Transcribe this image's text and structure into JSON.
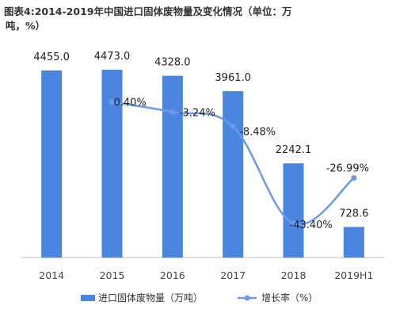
{
  "title_line1": "图表4:2014-2019年中国进口固体废物量及变化情况（单位：万",
  "title_line2": "吨，%）",
  "chart_data": {
    "type": "bar",
    "categories": [
      "2014",
      "2015",
      "2016",
      "2017",
      "2018",
      "2019H1"
    ],
    "series": [
      {
        "name": "进口固体废物量（万吨）",
        "type": "bar",
        "color": "#4a86e0",
        "values": [
          4455.0,
          4473.0,
          4328.0,
          3961.0,
          2242.1,
          728.6
        ],
        "labels": [
          "4455.0",
          "4473.0",
          "4328.0",
          "3961.0",
          "2242.1",
          "728.6"
        ]
      },
      {
        "name": "增长率（%）",
        "type": "line",
        "color": "#6b9be6",
        "x": [
          "2015",
          "2016",
          "2017",
          "2018",
          "2019H1"
        ],
        "values": [
          0.4,
          -3.24,
          -8.48,
          -43.4,
          -26.99
        ],
        "labels": [
          "0.40%",
          "-3.24%",
          "-8.48%",
          "-43.40%",
          "-26.99%"
        ]
      }
    ],
    "ylim_bar": [
      0,
      5000
    ],
    "ylim_line": [
      -50,
      10
    ],
    "legend_position": "bottom",
    "grid": false
  }
}
